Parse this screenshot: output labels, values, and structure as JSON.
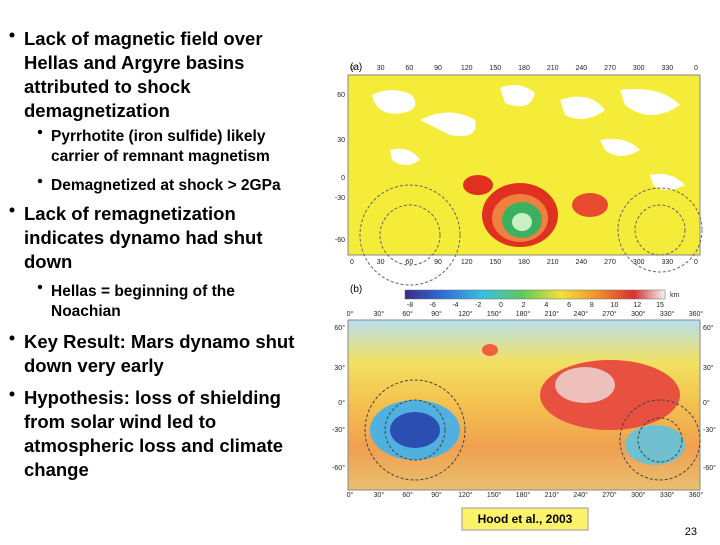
{
  "bullets": [
    {
      "lines": [
        "Lack of magnetic field over",
        "Hellas and Argyre basins",
        "attributed to shock",
        "demagnetization"
      ],
      "sub": [
        {
          "lines": [
            "Pyrrhotite (iron sulfide) likely",
            "carrier of remnant magnetism"
          ]
        },
        {
          "lines": [
            "Demagnetized at shock > 2GPa"
          ]
        }
      ]
    },
    {
      "lines": [
        "Lack of remagnetization",
        "indicates dynamo had shut",
        "down"
      ],
      "sub": [
        {
          "lines": [
            "Hellas = beginning of the",
            "Noachian"
          ]
        }
      ]
    },
    {
      "lines": [
        "Key Result: Mars dynamo shut",
        "down very early"
      ],
      "sub": []
    },
    {
      "lines": [
        "Hypothesis: loss of shielding",
        "from solar wind led to",
        "atmospheric loss and climate",
        "change"
      ],
      "sub": []
    }
  ],
  "figure_a": {
    "label": "(a)",
    "x_ticks": [
      "0",
      "30",
      "60",
      "90",
      "120",
      "150",
      "180",
      "210",
      "240",
      "270",
      "300",
      "330",
      "0"
    ],
    "y_ticks": [
      "60",
      "30",
      "0",
      "-30",
      "-60"
    ]
  },
  "figure_b": {
    "label": "(b)",
    "colorbar_ticks": [
      "-8",
      "-6",
      "-4",
      "-2",
      "0",
      "2",
      "4",
      "6",
      "8",
      "10",
      "12",
      "15"
    ],
    "colorbar_unit": "km",
    "x_ticks": [
      "0°",
      "30°",
      "60°",
      "90°",
      "120°",
      "150°",
      "180°",
      "210°",
      "240°",
      "270°",
      "300°",
      "330°",
      "360°"
    ],
    "y_ticks": [
      "60°",
      "30°",
      "0°",
      "-30°",
      "-60°"
    ]
  },
  "citation": "Hood et al., 2003",
  "page_number": "23"
}
